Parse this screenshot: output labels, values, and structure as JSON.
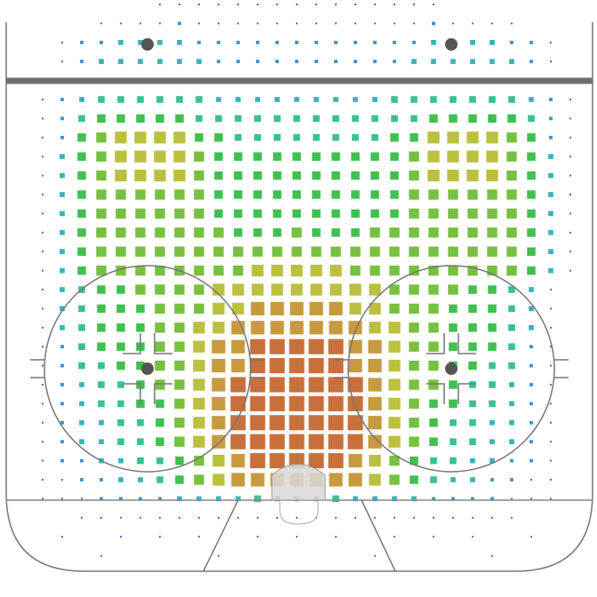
{
  "chart_data": {
    "type": "heatmap",
    "palette": [
      "#3a4fc8",
      "#3a5fcc",
      "#3a8fcc",
      "#38b4b8",
      "#3cc090",
      "#40c050",
      "#78c040",
      "#bcc040",
      "#c89a40",
      "#c8703c",
      "#c0503a"
    ],
    "values": [
      [
        0,
        0,
        0,
        0,
        0,
        0,
        0,
        1,
        1,
        1,
        1,
        1,
        1,
        1,
        1,
        1,
        1,
        1,
        1,
        1,
        1,
        1,
        0,
        0,
        0,
        0,
        0,
        0,
        0
      ],
      [
        0,
        0,
        0,
        0,
        1,
        1,
        1,
        1,
        2,
        1,
        1,
        1,
        1,
        1,
        1,
        1,
        1,
        1,
        1,
        1,
        1,
        2,
        1,
        1,
        1,
        1,
        0,
        0,
        0
      ],
      [
        0,
        0,
        1,
        2,
        2,
        3,
        3,
        3,
        3,
        2,
        2,
        2,
        2,
        2,
        2,
        2,
        2,
        2,
        2,
        2,
        2,
        3,
        3,
        3,
        3,
        2,
        2,
        1,
        0
      ],
      [
        0,
        0,
        1,
        2,
        3,
        3,
        3,
        3,
        3,
        3,
        2,
        2,
        2,
        2,
        2,
        2,
        2,
        2,
        2,
        2,
        3,
        3,
        3,
        3,
        3,
        3,
        2,
        1,
        0
      ],
      [
        0,
        1,
        2,
        2,
        3,
        3,
        3,
        3,
        3,
        3,
        3,
        3,
        3,
        3,
        3,
        3,
        3,
        3,
        3,
        3,
        3,
        3,
        3,
        3,
        3,
        3,
        2,
        2,
        1
      ],
      [
        0,
        1,
        2,
        3,
        4,
        4,
        4,
        4,
        4,
        4,
        3,
        3,
        3,
        3,
        3,
        3,
        3,
        3,
        3,
        4,
        4,
        4,
        4,
        4,
        4,
        4,
        3,
        2,
        1
      ],
      [
        0,
        1,
        2,
        4,
        5,
        5,
        5,
        5,
        5,
        4,
        4,
        4,
        4,
        4,
        4,
        4,
        4,
        4,
        4,
        4,
        4,
        5,
        5,
        5,
        5,
        5,
        4,
        2,
        1
      ],
      [
        0,
        1,
        2,
        5,
        6,
        7,
        7,
        7,
        7,
        5,
        5,
        4,
        4,
        4,
        4,
        4,
        4,
        4,
        4,
        5,
        5,
        7,
        7,
        7,
        7,
        6,
        5,
        2,
        1
      ],
      [
        0,
        1,
        3,
        5,
        6,
        7,
        7,
        7,
        7,
        6,
        5,
        5,
        5,
        5,
        5,
        5,
        5,
        5,
        5,
        5,
        6,
        7,
        7,
        7,
        7,
        6,
        5,
        3,
        1
      ],
      [
        0,
        1,
        3,
        5,
        6,
        7,
        7,
        7,
        7,
        6,
        5,
        5,
        5,
        5,
        5,
        5,
        5,
        5,
        5,
        5,
        6,
        7,
        7,
        7,
        7,
        6,
        5,
        3,
        1
      ],
      [
        0,
        1,
        3,
        5,
        6,
        6,
        6,
        6,
        6,
        6,
        5,
        5,
        5,
        5,
        5,
        5,
        5,
        5,
        5,
        5,
        6,
        6,
        6,
        6,
        6,
        6,
        5,
        3,
        1
      ],
      [
        0,
        1,
        3,
        5,
        6,
        6,
        6,
        6,
        6,
        6,
        5,
        5,
        5,
        5,
        5,
        5,
        5,
        5,
        5,
        5,
        6,
        6,
        6,
        6,
        6,
        6,
        5,
        3,
        1
      ],
      [
        0,
        1,
        3,
        5,
        6,
        6,
        6,
        6,
        6,
        6,
        6,
        5,
        5,
        5,
        6,
        5,
        5,
        5,
        6,
        6,
        6,
        6,
        6,
        6,
        6,
        6,
        5,
        3,
        1
      ],
      [
        0,
        1,
        3,
        5,
        6,
        6,
        6,
        6,
        6,
        6,
        6,
        6,
        6,
        6,
        6,
        6,
        6,
        6,
        6,
        6,
        6,
        6,
        6,
        6,
        6,
        6,
        5,
        3,
        1
      ],
      [
        0,
        1,
        3,
        5,
        6,
        6,
        6,
        6,
        6,
        6,
        6,
        6,
        7,
        7,
        7,
        7,
        7,
        6,
        6,
        6,
        6,
        6,
        6,
        6,
        6,
        6,
        5,
        3,
        1
      ],
      [
        0,
        1,
        3,
        4,
        5,
        5,
        6,
        6,
        6,
        6,
        7,
        7,
        7,
        7,
        7,
        7,
        7,
        7,
        7,
        6,
        6,
        6,
        6,
        5,
        5,
        4,
        3,
        1,
        0
      ],
      [
        0,
        1,
        3,
        4,
        5,
        5,
        5,
        6,
        6,
        6,
        7,
        7,
        8,
        8,
        8,
        8,
        8,
        7,
        7,
        6,
        6,
        6,
        5,
        5,
        5,
        4,
        3,
        1,
        0
      ],
      [
        0,
        1,
        3,
        4,
        5,
        5,
        5,
        6,
        6,
        7,
        7,
        8,
        8,
        8,
        8,
        8,
        8,
        8,
        7,
        7,
        6,
        6,
        5,
        5,
        5,
        4,
        3,
        1,
        0
      ],
      [
        0,
        1,
        2,
        4,
        5,
        5,
        5,
        6,
        6,
        7,
        8,
        8,
        9,
        9,
        9,
        9,
        9,
        8,
        8,
        7,
        6,
        6,
        5,
        5,
        5,
        4,
        2,
        1,
        0
      ],
      [
        0,
        1,
        2,
        4,
        4,
        5,
        5,
        6,
        6,
        7,
        8,
        8,
        9,
        9,
        9,
        9,
        9,
        8,
        8,
        7,
        6,
        6,
        5,
        5,
        4,
        4,
        2,
        1,
        0
      ],
      [
        0,
        1,
        2,
        3,
        4,
        4,
        5,
        6,
        6,
        7,
        8,
        9,
        9,
        9,
        9,
        9,
        9,
        9,
        8,
        7,
        6,
        6,
        5,
        4,
        4,
        3,
        2,
        1,
        0
      ],
      [
        0,
        1,
        2,
        3,
        4,
        4,
        5,
        5,
        6,
        7,
        8,
        9,
        9,
        9,
        9,
        9,
        9,
        9,
        8,
        7,
        6,
        5,
        5,
        4,
        4,
        3,
        2,
        1,
        0
      ],
      [
        0,
        1,
        2,
        3,
        3,
        4,
        4,
        5,
        6,
        7,
        8,
        9,
        9,
        9,
        9,
        9,
        9,
        9,
        8,
        7,
        6,
        5,
        4,
        4,
        3,
        3,
        2,
        1,
        0
      ],
      [
        0,
        1,
        2,
        3,
        3,
        4,
        4,
        5,
        6,
        7,
        8,
        9,
        9,
        9,
        9,
        9,
        9,
        9,
        8,
        7,
        6,
        5,
        4,
        4,
        3,
        3,
        2,
        1,
        0
      ],
      [
        0,
        1,
        2,
        2,
        3,
        3,
        4,
        4,
        5,
        6,
        7,
        8,
        9,
        9,
        9,
        9,
        9,
        8,
        7,
        6,
        5,
        4,
        4,
        3,
        3,
        2,
        2,
        1,
        0
      ],
      [
        0,
        1,
        1,
        2,
        2,
        3,
        3,
        4,
        5,
        6,
        7,
        8,
        8,
        8,
        8,
        8,
        8,
        8,
        7,
        6,
        5,
        4,
        3,
        3,
        2,
        2,
        1,
        1,
        0
      ],
      [
        0,
        1,
        1,
        1,
        2,
        2,
        2,
        2,
        3,
        3,
        3,
        3,
        4,
        3,
        3,
        3,
        4,
        3,
        3,
        3,
        3,
        2,
        2,
        2,
        2,
        1,
        1,
        1,
        0
      ],
      [
        0,
        0,
        0,
        1,
        1,
        1,
        1,
        1,
        1,
        1,
        1,
        1,
        1,
        1,
        1,
        1,
        1,
        1,
        1,
        1,
        1,
        1,
        1,
        1,
        1,
        1,
        0,
        0,
        0
      ],
      [
        0,
        0,
        1,
        0,
        0,
        1,
        0,
        1,
        0,
        1,
        0,
        0,
        1,
        0,
        1,
        0,
        1,
        0,
        0,
        1,
        0,
        1,
        0,
        1,
        0,
        0,
        1,
        0,
        0
      ],
      [
        0,
        0,
        0,
        0,
        1,
        0,
        0,
        0,
        0,
        0,
        1,
        0,
        0,
        0,
        0,
        0,
        0,
        0,
        1,
        0,
        0,
        0,
        0,
        0,
        1,
        0,
        0,
        0,
        0
      ]
    ]
  }
}
